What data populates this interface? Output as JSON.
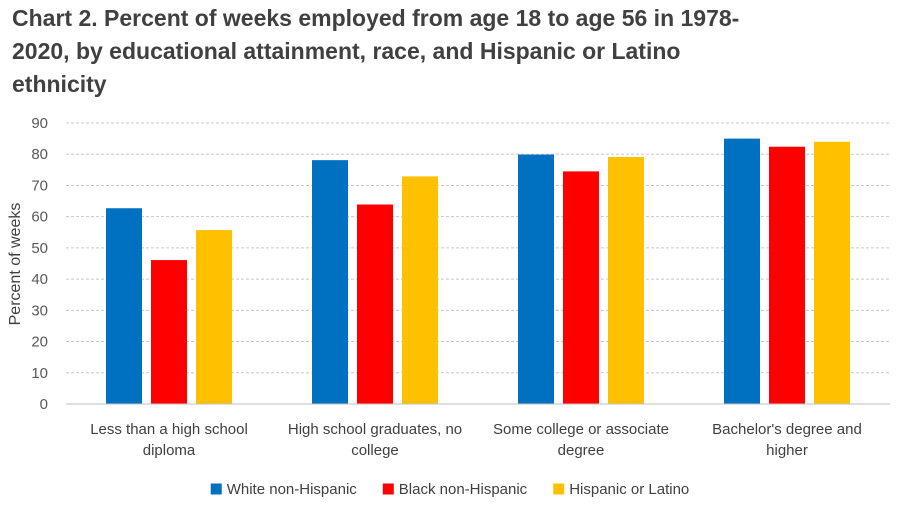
{
  "chart_data": {
    "type": "bar",
    "title": "Chart 2. Percent of weeks employed from age 18 to age 56 in 1978-2020, by educational attainment, race, and Hispanic or Latino ethnicity",
    "xlabel": "",
    "ylabel": "Percent of weeks",
    "ylim": [
      0,
      90
    ],
    "yticks": [
      0,
      10,
      20,
      30,
      40,
      50,
      60,
      70,
      80,
      90
    ],
    "grid": true,
    "legend_position": "bottom",
    "categories": [
      "Less than a high school diploma",
      "High school graduates, no college",
      "Some college or associate degree",
      "Bachelor's degree and higher"
    ],
    "category_lines": [
      [
        "Less than a high school",
        "diploma"
      ],
      [
        "High school graduates, no",
        "college"
      ],
      [
        "Some college or associate",
        "degree"
      ],
      [
        "Bachelor's degree and",
        "higher"
      ]
    ],
    "series": [
      {
        "name": "White non-Hispanic",
        "color": "#0070C0",
        "values": [
          62.7,
          78.1,
          79.9,
          85.0
        ]
      },
      {
        "name": "Black non-Hispanic",
        "color": "#FF0000",
        "values": [
          46.1,
          63.9,
          74.5,
          82.4
        ]
      },
      {
        "name": "Hispanic or Latino",
        "color": "#FFC000",
        "values": [
          55.7,
          72.9,
          79.1,
          84.0
        ]
      }
    ]
  }
}
